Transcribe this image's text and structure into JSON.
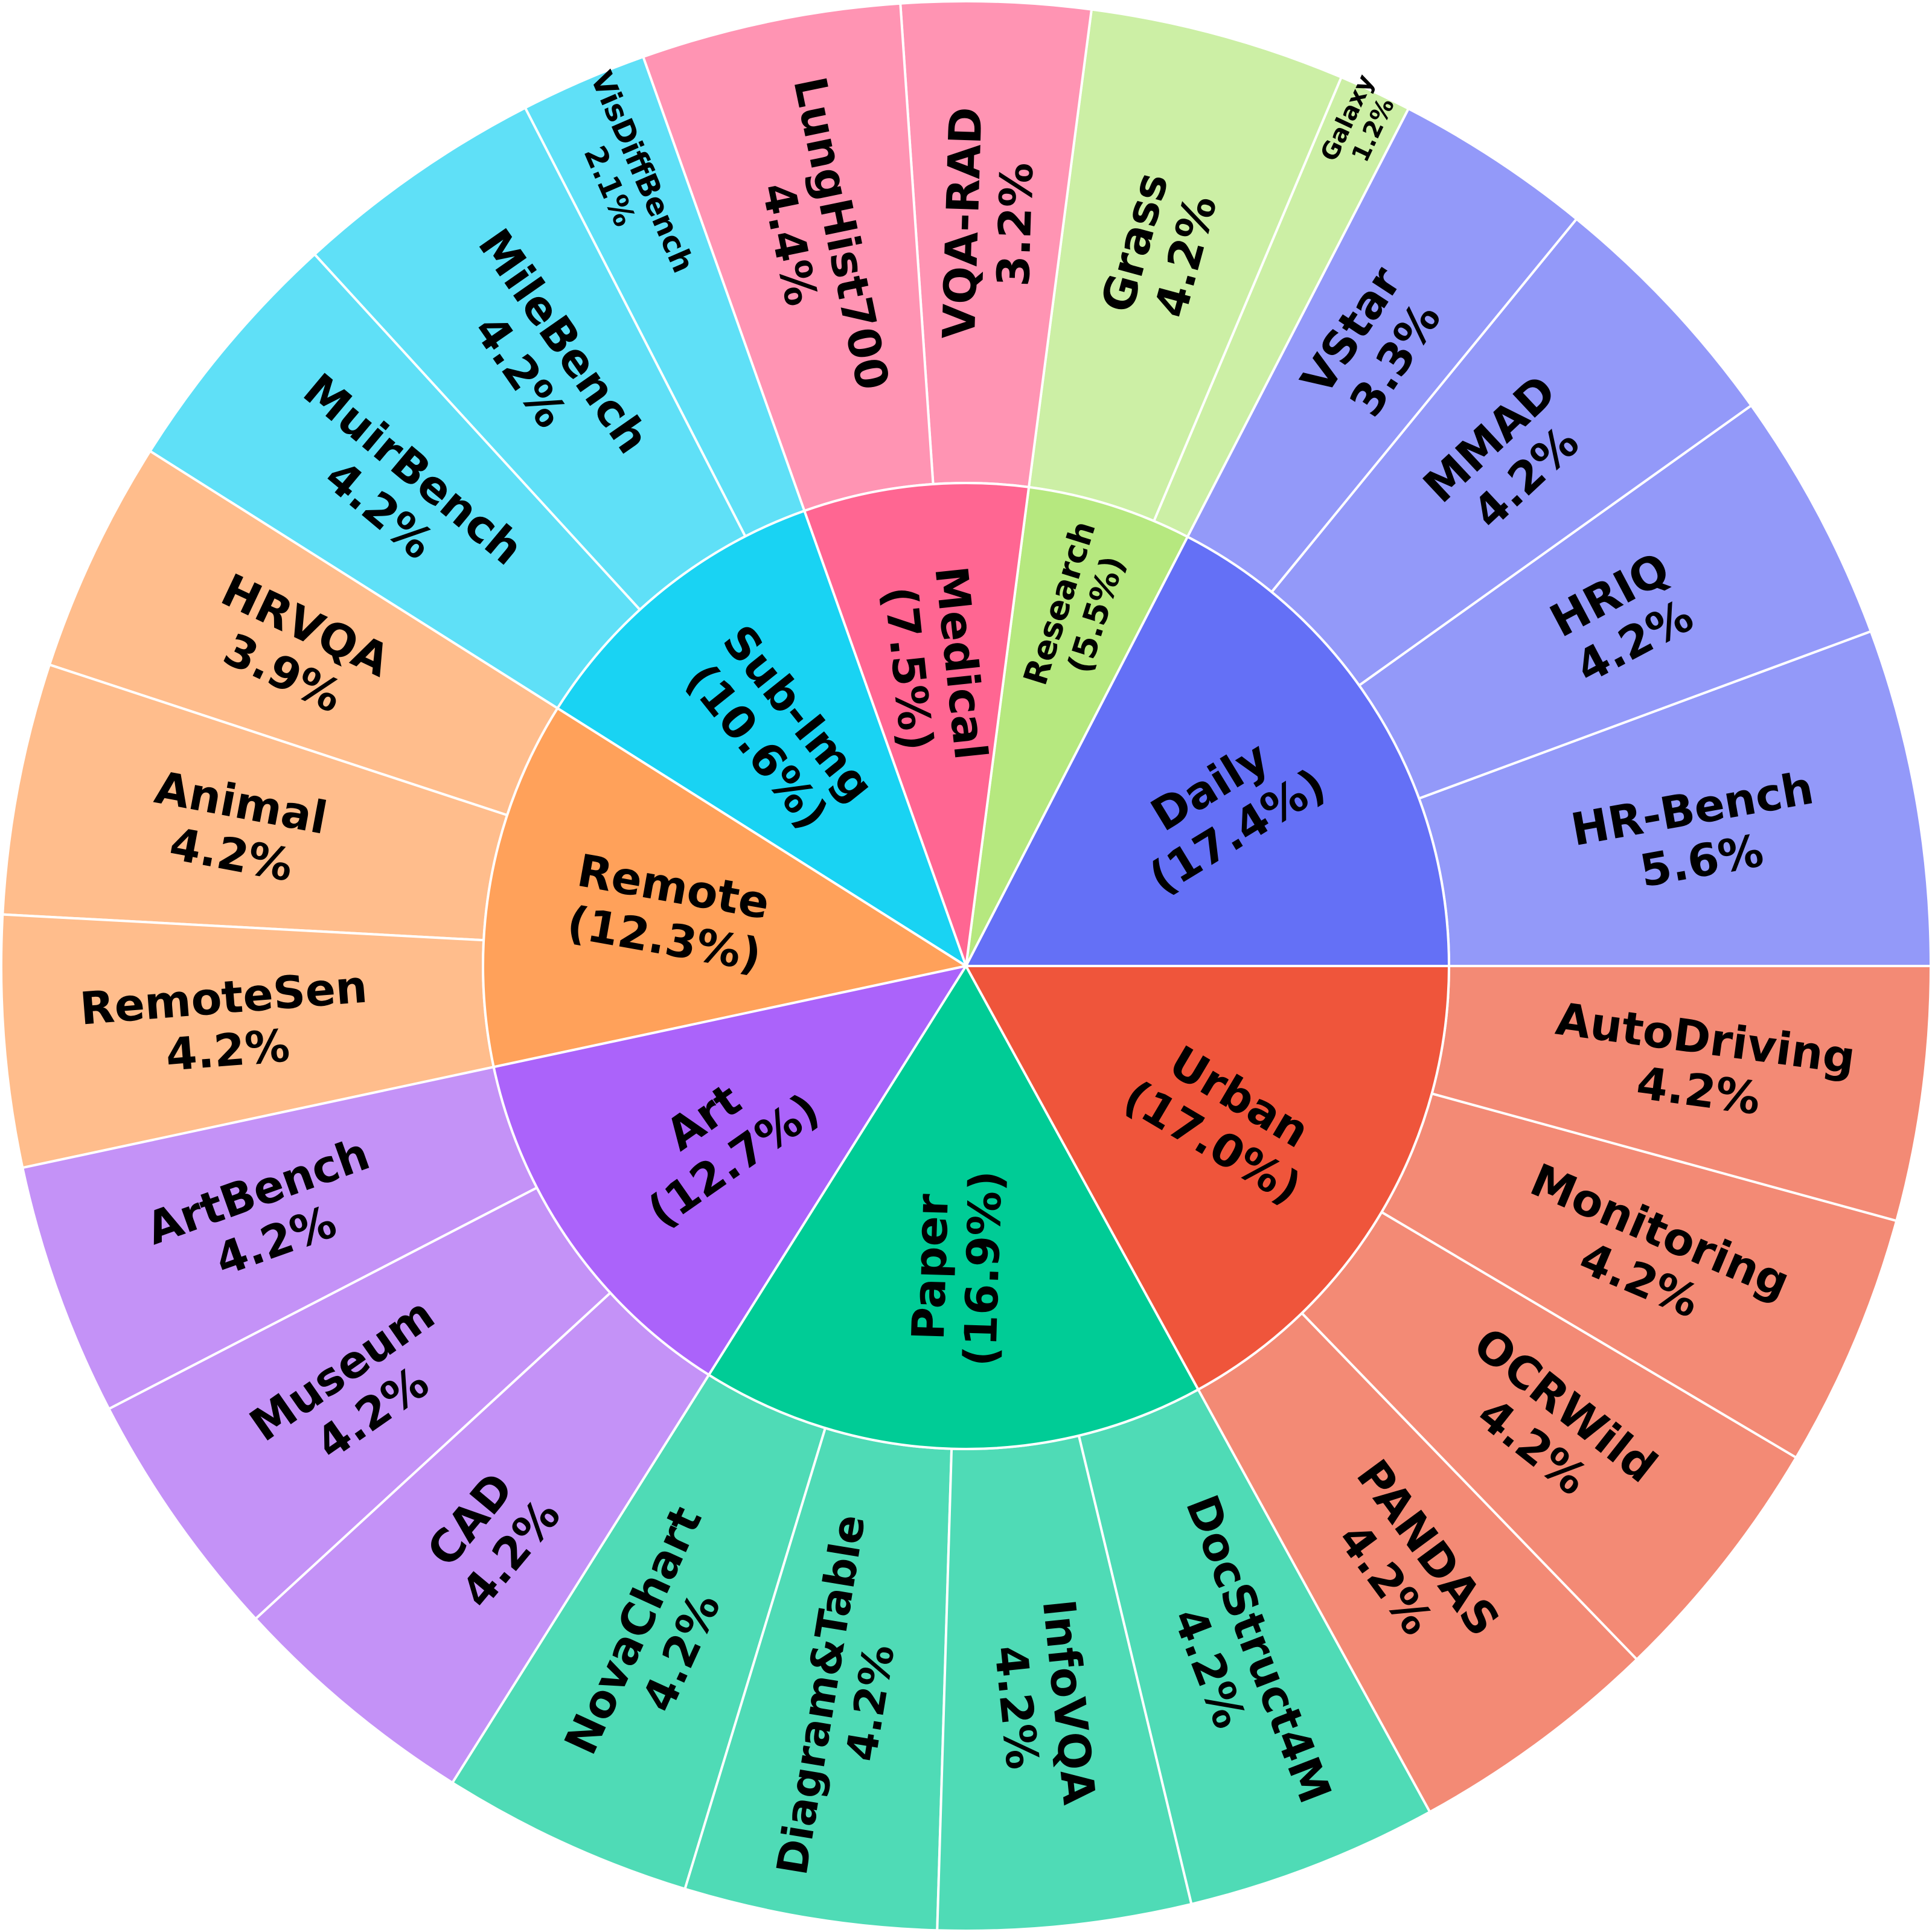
{
  "chart_data": {
    "type": "sunburst",
    "title": "",
    "inner": [
      {
        "name": "Daily",
        "label": "Daily",
        "pct_label": "(17.4%)",
        "value": 17.4,
        "color": "#6470f6"
      },
      {
        "name": "Research",
        "label": "Research",
        "pct_label": "(5.5%)",
        "value": 5.5,
        "color": "#b6e87f"
      },
      {
        "name": "Medical",
        "label": "Medical",
        "pct_label": "(7.5%)",
        "value": 7.5,
        "color": "#ff6692"
      },
      {
        "name": "Sub-Img",
        "label": "Sub-Img",
        "pct_label": "(10.6%)",
        "value": 10.6,
        "color": "#19d3f3"
      },
      {
        "name": "Remote",
        "label": "Remote",
        "pct_label": "(12.3%)",
        "value": 12.3,
        "color": "#ffa15a"
      },
      {
        "name": "Art",
        "label": "Art",
        "pct_label": "(12.7%)",
        "value": 12.7,
        "color": "#ab63fa"
      },
      {
        "name": "Paper",
        "label": "Paper",
        "pct_label": "(16.9%)",
        "value": 16.9,
        "color": "#00cc96"
      },
      {
        "name": "Urban",
        "label": "Urban",
        "pct_label": "(17.0%)",
        "value": 17.0,
        "color": "#ef553b"
      }
    ],
    "outer": [
      {
        "parent": "Daily",
        "label": "HR-Bench",
        "pct_label": "5.6%",
        "value": 5.6,
        "color": "#9399f9"
      },
      {
        "parent": "Daily",
        "label": "HRIQ",
        "pct_label": "4.2%",
        "value": 4.2,
        "color": "#9399f9"
      },
      {
        "parent": "Daily",
        "label": "MMAD",
        "pct_label": "4.2%",
        "value": 4.2,
        "color": "#9399f9"
      },
      {
        "parent": "Daily",
        "label": "VStar",
        "pct_label": "3.3%",
        "value": 3.3,
        "color": "#9399f9"
      },
      {
        "parent": "Research",
        "label": "Galaxy",
        "pct_label": "1.2%",
        "value": 1.2,
        "color": "#ccefa5"
      },
      {
        "parent": "Research",
        "label": "Grass",
        "pct_label": "4.2%",
        "value": 4.2,
        "color": "#ccefa5"
      },
      {
        "parent": "Medical",
        "label": "VQA-RAD",
        "pct_label": "3.2%",
        "value": 3.2,
        "color": "#ff94b3"
      },
      {
        "parent": "Medical",
        "label": "LungHist700",
        "pct_label": "4.4%",
        "value": 4.4,
        "color": "#ff94b3"
      },
      {
        "parent": "Sub-Img",
        "label": "VisDiffBench",
        "pct_label": "2.1%",
        "value": 2.1,
        "color": "#5fe0f7"
      },
      {
        "parent": "Sub-Img",
        "label": "MileBench",
        "pct_label": "4.2%",
        "value": 4.2,
        "color": "#5fe0f7"
      },
      {
        "parent": "Sub-Img",
        "label": "MuirBench",
        "pct_label": "4.2%",
        "value": 4.2,
        "color": "#5fe0f7"
      },
      {
        "parent": "Remote",
        "label": "HRVQA",
        "pct_label": "3.9%",
        "value": 3.9,
        "color": "#ffbd8c"
      },
      {
        "parent": "Remote",
        "label": "Animal",
        "pct_label": "4.2%",
        "value": 4.2,
        "color": "#ffbd8c"
      },
      {
        "parent": "Remote",
        "label": "RemoteSen",
        "pct_label": "4.2%",
        "value": 4.2,
        "color": "#ffbd8c"
      },
      {
        "parent": "Art",
        "label": "ArtBench",
        "pct_label": "4.2%",
        "value": 4.2,
        "color": "#c492f7"
      },
      {
        "parent": "Art",
        "label": "Museum",
        "pct_label": "4.2%",
        "value": 4.2,
        "color": "#c492f7"
      },
      {
        "parent": "Art",
        "label": "CAD",
        "pct_label": "4.2%",
        "value": 4.2,
        "color": "#c492f7"
      },
      {
        "parent": "Paper",
        "label": "NovaChart",
        "pct_label": "4.2%",
        "value": 4.2,
        "color": "#4fdbb6"
      },
      {
        "parent": "Paper",
        "label": "Diagram&Table",
        "pct_label": "4.2%",
        "value": 4.2,
        "color": "#4fdbb6"
      },
      {
        "parent": "Paper",
        "label": "InfoVQA",
        "pct_label": "4.2%",
        "value": 4.2,
        "color": "#4fdbb6"
      },
      {
        "parent": "Paper",
        "label": "DocStruct4M",
        "pct_label": "4.2%",
        "value": 4.2,
        "color": "#4fdbb6"
      },
      {
        "parent": "Urban",
        "label": "PANDAS",
        "pct_label": "4.2%",
        "value": 4.2,
        "color": "#f38a75"
      },
      {
        "parent": "Urban",
        "label": "OCRWild",
        "pct_label": "4.2%",
        "value": 4.2,
        "color": "#f38a75"
      },
      {
        "parent": "Urban",
        "label": "Monitoring",
        "pct_label": "4.2%",
        "value": 4.2,
        "color": "#f38a75"
      },
      {
        "parent": "Urban",
        "label": "AutoDriving",
        "pct_label": "4.2%",
        "value": 4.2,
        "color": "#f38a75"
      }
    ]
  }
}
